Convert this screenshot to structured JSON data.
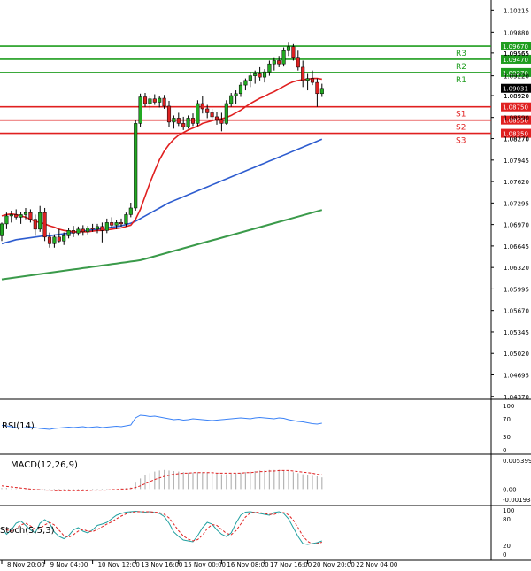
{
  "chart_data": {
    "type": "candlestick",
    "instrument_note": "EURUSD-like forex chart",
    "price_axis": {
      "ylim": [
        1.0434,
        1.1034
      ],
      "tick_labels": [
        "1.10215",
        "1.09880",
        "1.09565",
        "1.09220",
        "1.08920",
        "1.08590",
        "1.08270",
        "1.07945",
        "1.07620",
        "1.07295",
        "1.06970",
        "1.06645",
        "1.06320",
        "1.05995",
        "1.05670",
        "1.05345",
        "1.05020",
        "1.04695",
        "1.04370"
      ],
      "tick_values": [
        1.10215,
        1.0988,
        1.09565,
        1.0922,
        1.0892,
        1.0859,
        1.0827,
        1.07945,
        1.0762,
        1.07295,
        1.0697,
        1.06645,
        1.0632,
        1.05995,
        1.0567,
        1.05345,
        1.0502,
        1.04695,
        1.0437
      ]
    },
    "time_axis": {
      "tick_labels": [
        "8 Nov 20:00",
        "9 Nov 04:00",
        "10 Nov 12:00",
        "13 Nov 16:00",
        "15 Nov 00:00",
        "16 Nov 08:00",
        "17 Nov 16:00",
        "20 Nov 20:00",
        "22 Nov 04:00"
      ],
      "tick_index": [
        0,
        9,
        19,
        28,
        37,
        46,
        55,
        64,
        73
      ]
    },
    "levels": [
      {
        "name": "R3",
        "value": 1.0967,
        "label": "1.09670",
        "color": "#1f9d1f"
      },
      {
        "name": "R2",
        "value": 1.0947,
        "label": "1.09470",
        "color": "#1f9d1f"
      },
      {
        "name": "R1",
        "value": 1.0927,
        "label": "1.09270",
        "color": "#1f9d1f"
      },
      {
        "name": "S1",
        "value": 1.0875,
        "label": "1.08750",
        "color": "#e02020"
      },
      {
        "name": "S2",
        "value": 1.0855,
        "label": "1.08550",
        "color": "#e02020"
      },
      {
        "name": "S3",
        "value": 1.0835,
        "label": "1.08350",
        "color": "#e02020"
      }
    ],
    "current_price": {
      "value": 1.09031,
      "label": "1.09031"
    },
    "extra_price_labels": [
      {
        "value": 1.0892,
        "label": "1.08920"
      },
      {
        "value": 1.0827,
        "label": "1.08270"
      },
      {
        "value": 1.09565,
        "label": "1.09565"
      }
    ],
    "candles": [
      [
        1.068,
        1.07,
        1.0672,
        1.0698
      ],
      [
        1.0698,
        1.0715,
        1.069,
        1.071
      ],
      [
        1.071,
        1.0718,
        1.07,
        1.0712
      ],
      [
        1.0712,
        1.072,
        1.0705,
        1.0708
      ],
      [
        1.0708,
        1.0716,
        1.0698,
        1.0712
      ],
      [
        1.0712,
        1.0722,
        1.0705,
        1.0715
      ],
      [
        1.0715,
        1.072,
        1.07,
        1.0705
      ],
      [
        1.0705,
        1.0712,
        1.068,
        1.069
      ],
      [
        1.069,
        1.0725,
        1.0686,
        1.0715
      ],
      [
        1.0715,
        1.0722,
        1.0672,
        1.0678
      ],
      [
        1.0678,
        1.0685,
        1.0662,
        1.0668
      ],
      [
        1.0668,
        1.0682,
        1.0662,
        1.0678
      ],
      [
        1.0678,
        1.069,
        1.067,
        1.0672
      ],
      [
        1.0672,
        1.0685,
        1.0666,
        1.068
      ],
      [
        1.068,
        1.0692,
        1.0676,
        1.0688
      ],
      [
        1.0688,
        1.0695,
        1.0678,
        1.0684
      ],
      [
        1.0684,
        1.0694,
        1.068,
        1.069
      ],
      [
        1.069,
        1.0696,
        1.068,
        1.0686
      ],
      [
        1.0686,
        1.0695,
        1.0682,
        1.0692
      ],
      [
        1.0692,
        1.0698,
        1.0686,
        1.069
      ],
      [
        1.069,
        1.0698,
        1.0684,
        1.0694
      ],
      [
        1.0694,
        1.07,
        1.067,
        1.0688
      ],
      [
        1.0688,
        1.0706,
        1.0684,
        1.07
      ],
      [
        1.07,
        1.0708,
        1.0692,
        1.0696
      ],
      [
        1.0696,
        1.0704,
        1.069,
        1.07
      ],
      [
        1.07,
        1.0706,
        1.0694,
        1.0698
      ],
      [
        1.0698,
        1.0715,
        1.0694,
        1.0712
      ],
      [
        1.0712,
        1.073,
        1.0708,
        1.0722
      ],
      [
        1.0722,
        1.0855,
        1.0718,
        1.085
      ],
      [
        1.085,
        1.0895,
        1.0845,
        1.089
      ],
      [
        1.089,
        1.0896,
        1.0875,
        1.088
      ],
      [
        1.088,
        1.0892,
        1.087,
        1.0887
      ],
      [
        1.0887,
        1.0894,
        1.0878,
        1.0882
      ],
      [
        1.0882,
        1.0892,
        1.0874,
        1.0888
      ],
      [
        1.0888,
        1.0893,
        1.0872,
        1.0876
      ],
      [
        1.0876,
        1.0884,
        1.0845,
        1.0852
      ],
      [
        1.0852,
        1.0862,
        1.0842,
        1.0858
      ],
      [
        1.0858,
        1.0866,
        1.0846,
        1.085
      ],
      [
        1.085,
        1.086,
        1.084,
        1.0845
      ],
      [
        1.0845,
        1.0862,
        1.0842,
        1.0858
      ],
      [
        1.0858,
        1.0865,
        1.0846,
        1.085
      ],
      [
        1.085,
        1.0885,
        1.0846,
        1.088
      ],
      [
        1.088,
        1.0892,
        1.0865,
        1.0872
      ],
      [
        1.0872,
        1.0878,
        1.0858,
        1.0866
      ],
      [
        1.0866,
        1.0872,
        1.0855,
        1.086
      ],
      [
        1.086,
        1.0868,
        1.0848,
        1.0856
      ],
      [
        1.0856,
        1.0866,
        1.0838,
        1.085
      ],
      [
        1.085,
        1.0885,
        1.0848,
        1.088
      ],
      [
        1.088,
        1.0896,
        1.0875,
        1.0892
      ],
      [
        1.0892,
        1.09,
        1.088,
        1.0895
      ],
      [
        1.0895,
        1.0912,
        1.089,
        1.0908
      ],
      [
        1.0908,
        1.0918,
        1.09,
        1.0915
      ],
      [
        1.0915,
        1.0928,
        1.0905,
        1.0922
      ],
      [
        1.0922,
        1.093,
        1.091,
        1.0925
      ],
      [
        1.0925,
        1.0935,
        1.0915,
        1.092
      ],
      [
        1.092,
        1.0932,
        1.0912,
        1.0928
      ],
      [
        1.0928,
        1.0945,
        1.0922,
        1.094
      ],
      [
        1.094,
        1.095,
        1.093,
        1.0945
      ],
      [
        1.0945,
        1.0952,
        1.0935,
        1.094
      ],
      [
        1.094,
        1.0965,
        1.0936,
        1.096
      ],
      [
        1.096,
        1.0972,
        1.0952,
        1.0966
      ],
      [
        1.0966,
        1.097,
        1.0945,
        1.095
      ],
      [
        1.095,
        1.096,
        1.093,
        1.0935
      ],
      [
        1.0935,
        1.0945,
        1.0905,
        1.0915
      ],
      [
        1.0915,
        1.0925,
        1.09,
        1.0918
      ],
      [
        1.0918,
        1.093,
        1.0908,
        1.0912
      ],
      [
        1.0912,
        1.0918,
        1.0875,
        1.0895
      ],
      [
        1.0895,
        1.091,
        1.089,
        1.0903
      ]
    ],
    "sma_fast": [
      1.071,
      1.0712,
      1.0713,
      1.0712,
      1.071,
      1.0708,
      1.0705,
      1.0702,
      1.07,
      1.0698,
      1.0695,
      1.0693,
      1.069,
      1.0688,
      1.0687,
      1.0686,
      1.0686,
      1.0686,
      1.0686,
      1.0687,
      1.0688,
      1.0688,
      1.0689,
      1.069,
      1.0691,
      1.0692,
      1.0694,
      1.0696,
      1.0705,
      1.072,
      1.074,
      1.076,
      1.0778,
      1.0795,
      1.0808,
      1.0818,
      1.0826,
      1.0832,
      1.0836,
      1.084,
      1.0843,
      1.0846,
      1.085,
      1.0852,
      1.0854,
      1.0856,
      1.0857,
      1.0859,
      1.0862,
      1.0866,
      1.087,
      1.0875,
      1.088,
      1.0884,
      1.0888,
      1.0891,
      1.0895,
      1.0898,
      1.0902,
      1.0906,
      1.091,
      1.0913,
      1.0915,
      1.0916,
      1.0917,
      1.0918,
      1.0918,
      1.0917
    ],
    "sma_mid": [
      1.0668,
      1.067,
      1.0672,
      1.0674,
      1.0675,
      1.0676,
      1.0677,
      1.0678,
      1.0679,
      1.068,
      1.068,
      1.0681,
      1.0682,
      1.0683,
      1.0684,
      1.0685,
      1.0686,
      1.0687,
      1.0688,
      1.0689,
      1.069,
      1.0691,
      1.0692,
      1.0693,
      1.0694,
      1.0695,
      1.0697,
      1.0699,
      1.0702,
      1.0706,
      1.071,
      1.0714,
      1.0718,
      1.0722,
      1.0726,
      1.073,
      1.0733,
      1.0736,
      1.0739,
      1.0742,
      1.0745,
      1.0748,
      1.0751,
      1.0754,
      1.0757,
      1.076,
      1.0763,
      1.0766,
      1.0769,
      1.0772,
      1.0775,
      1.0778,
      1.0781,
      1.0784,
      1.0787,
      1.079,
      1.0793,
      1.0796,
      1.0799,
      1.0802,
      1.0805,
      1.0808,
      1.0811,
      1.0814,
      1.0817,
      1.082,
      1.0823,
      1.0826
    ],
    "sma_slow": [
      1.0614,
      1.0615,
      1.0616,
      1.0617,
      1.0618,
      1.0619,
      1.062,
      1.0621,
      1.0622,
      1.0623,
      1.0624,
      1.0625,
      1.0626,
      1.0627,
      1.0628,
      1.0629,
      1.063,
      1.0631,
      1.0632,
      1.0633,
      1.0634,
      1.0635,
      1.0636,
      1.0637,
      1.0638,
      1.0639,
      1.064,
      1.0641,
      1.0642,
      1.0643,
      1.0645,
      1.0647,
      1.0649,
      1.0651,
      1.0653,
      1.0655,
      1.0657,
      1.0659,
      1.0661,
      1.0663,
      1.0665,
      1.0667,
      1.0669,
      1.0671,
      1.0673,
      1.0675,
      1.0677,
      1.0679,
      1.0681,
      1.0683,
      1.0685,
      1.0687,
      1.0689,
      1.0691,
      1.0693,
      1.0695,
      1.0697,
      1.0699,
      1.0701,
      1.0703,
      1.0705,
      1.0707,
      1.0709,
      1.0711,
      1.0713,
      1.0715,
      1.0717,
      1.0719
    ],
    "rsi": {
      "label": "RSI(14)",
      "ylim": [
        0,
        100
      ],
      "ticks": [
        "100",
        "70",
        "30",
        "0"
      ],
      "tick_values": [
        100,
        70,
        30,
        0
      ],
      "values": [
        55,
        54,
        52,
        50,
        49,
        50,
        51,
        50,
        48,
        47,
        46,
        48,
        49,
        50,
        51,
        50,
        51,
        52,
        50,
        51,
        52,
        50,
        51,
        52,
        53,
        52,
        54,
        56,
        72,
        78,
        77,
        75,
        76,
        74,
        72,
        70,
        68,
        69,
        67,
        68,
        70,
        69,
        68,
        67,
        66,
        67,
        68,
        69,
        70,
        71,
        72,
        71,
        70,
        72,
        73,
        72,
        71,
        70,
        72,
        71,
        68,
        66,
        64,
        63,
        61,
        59,
        58,
        60
      ]
    },
    "macd": {
      "label": "MACD(12,26,9)",
      "ylim": [
        -0.001934,
        0.005399
      ],
      "ticks": [
        "0.005399",
        "0.00",
        "-0.001934"
      ],
      "tick_values": [
        0.005399,
        0.0,
        -0.001934
      ],
      "histogram": [
        0.0002,
        0.0002,
        0.0001,
        0.0001,
        0.0,
        -0.0001,
        -0.0001,
        -0.0002,
        -0.0002,
        -0.0003,
        -0.0003,
        -0.0003,
        -0.0003,
        -0.0003,
        -0.0002,
        -0.0002,
        -0.0002,
        -0.0002,
        -0.0002,
        -0.0001,
        -0.0001,
        -0.0001,
        -0.0001,
        0.0,
        0.0,
        0.0001,
        0.0002,
        0.0003,
        0.0012,
        0.002,
        0.0026,
        0.003,
        0.0033,
        0.0035,
        0.0036,
        0.0035,
        0.0034,
        0.0033,
        0.0032,
        0.0031,
        0.0031,
        0.0032,
        0.0032,
        0.0031,
        0.003,
        0.0029,
        0.0028,
        0.0028,
        0.0029,
        0.003,
        0.0031,
        0.0032,
        0.0033,
        0.0034,
        0.0035,
        0.0035,
        0.0036,
        0.0036,
        0.0036,
        0.0035,
        0.0034,
        0.0032,
        0.003,
        0.0028,
        0.0027,
        0.0025,
        0.0024,
        0.0022
      ],
      "signal": [
        0.0006,
        0.0005,
        0.0004,
        0.0003,
        0.0002,
        0.0001,
        0.0,
        -0.0001,
        -0.0001,
        -0.0002,
        -0.0002,
        -0.0003,
        -0.0003,
        -0.0003,
        -0.0003,
        -0.0003,
        -0.0003,
        -0.0003,
        -0.0003,
        -0.0002,
        -0.0002,
        -0.0002,
        -0.0002,
        -0.0001,
        -0.0001,
        0.0,
        0.0,
        0.0001,
        0.0003,
        0.0006,
        0.001,
        0.0014,
        0.0018,
        0.0021,
        0.0024,
        0.0026,
        0.0028,
        0.0029,
        0.003,
        0.003,
        0.0031,
        0.0031,
        0.0031,
        0.0031,
        0.0031,
        0.003,
        0.003,
        0.003,
        0.003,
        0.003,
        0.003,
        0.0031,
        0.0031,
        0.0032,
        0.0033,
        0.0033,
        0.0034,
        0.0034,
        0.0035,
        0.0035,
        0.0035,
        0.0034,
        0.0033,
        0.0032,
        0.0031,
        0.003,
        0.0028,
        0.0027
      ]
    },
    "stoch": {
      "label": "Stoch(5,5,3)",
      "ylim": [
        0,
        100
      ],
      "ticks": [
        "100",
        "80",
        "20",
        "0"
      ],
      "tick_values": [
        100,
        80,
        20,
        0
      ],
      "main": [
        60,
        45,
        55,
        70,
        75,
        65,
        55,
        48,
        70,
        78,
        70,
        50,
        40,
        35,
        42,
        55,
        60,
        52,
        48,
        55,
        65,
        68,
        72,
        80,
        88,
        92,
        95,
        96,
        97,
        96,
        95,
        96,
        94,
        92,
        85,
        70,
        50,
        40,
        32,
        30,
        28,
        42,
        60,
        72,
        68,
        55,
        45,
        40,
        48,
        70,
        88,
        95,
        96,
        94,
        92,
        90,
        88,
        94,
        96,
        92,
        80,
        60,
        40,
        24,
        22,
        24,
        26,
        30
      ],
      "signal": [
        58,
        55,
        52,
        58,
        66,
        70,
        64,
        56,
        58,
        66,
        72,
        66,
        54,
        42,
        38,
        44,
        52,
        56,
        52,
        51,
        56,
        62,
        68,
        73,
        80,
        86,
        91,
        94,
        96,
        96,
        96,
        96,
        95,
        94,
        90,
        82,
        68,
        53,
        41,
        34,
        30,
        33,
        43,
        58,
        67,
        65,
        56,
        47,
        44,
        53,
        68,
        84,
        93,
        95,
        94,
        92,
        90,
        90,
        93,
        94,
        89,
        77,
        60,
        41,
        29,
        23,
        24,
        27
      ]
    }
  }
}
